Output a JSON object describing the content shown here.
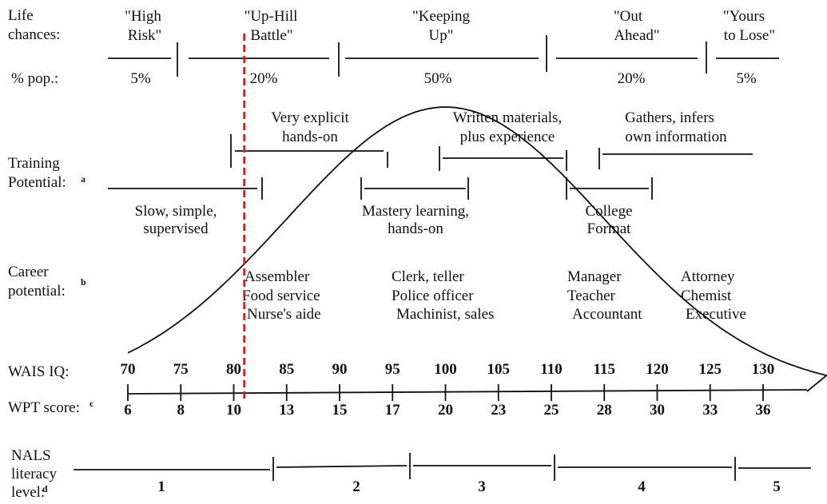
{
  "rows": {
    "life_chances": [
      "Life",
      "chances:"
    ],
    "pct_pop": "% pop.:",
    "training": [
      "Training",
      "Potential:"
    ],
    "training_note": "a",
    "career": [
      "Career",
      "potential:"
    ],
    "career_note": "b",
    "wais": "WAIS IQ:",
    "wpt": "WPT score:",
    "wpt_note": "c",
    "nals": [
      "NALS",
      "literacy",
      "level:"
    ],
    "nals_note": "d"
  },
  "life_chances": [
    {
      "label": [
        "\"High",
        "Risk\""
      ],
      "pct": "5%"
    },
    {
      "label": [
        "\"Up-Hill",
        "Battle\""
      ],
      "pct": "20%"
    },
    {
      "label": [
        "\"Keeping",
        "Up\""
      ],
      "pct": "50%"
    },
    {
      "label": [
        "\"Out",
        "Ahead\""
      ],
      "pct": "20%"
    },
    {
      "label": [
        "\"Yours",
        "to Lose\""
      ],
      "pct": "5%"
    }
  ],
  "training_upper": [
    [
      "Very explicit",
      "hands-on"
    ],
    [
      "Written materials,",
      "plus experience"
    ],
    [
      "Gathers, infers",
      "own information"
    ]
  ],
  "training_lower": [
    [
      "Slow, simple,",
      "supervised"
    ],
    [
      "Mastery learning,",
      "hands-on"
    ],
    [
      "College",
      "Format"
    ]
  ],
  "careers": [
    [
      "Assembler",
      "Food service",
      "Nurse's aide"
    ],
    [
      "Clerk, teller",
      "Police officer",
      "Machinist, sales"
    ],
    [
      "Manager",
      "Teacher",
      "Accountant"
    ],
    [
      "Attorney",
      "Chemist",
      "Executive"
    ]
  ],
  "wais_ticks": [
    "70",
    "75",
    "80",
    "85",
    "90",
    "95",
    "100",
    "105",
    "110",
    "115",
    "120",
    "125",
    "130"
  ],
  "wpt_ticks": [
    "6",
    "8",
    "10",
    "13",
    "15",
    "17",
    "20",
    "23",
    "25",
    "28",
    "30",
    "33",
    "36"
  ],
  "nals_levels": [
    "1",
    "2",
    "3",
    "4",
    "5"
  ],
  "colors": {
    "cutoff_line": "#e02020",
    "ink": "#111111"
  },
  "distribution": {
    "mean_iq": 100,
    "sd_iq": 15,
    "cutoff_iq": 81
  }
}
